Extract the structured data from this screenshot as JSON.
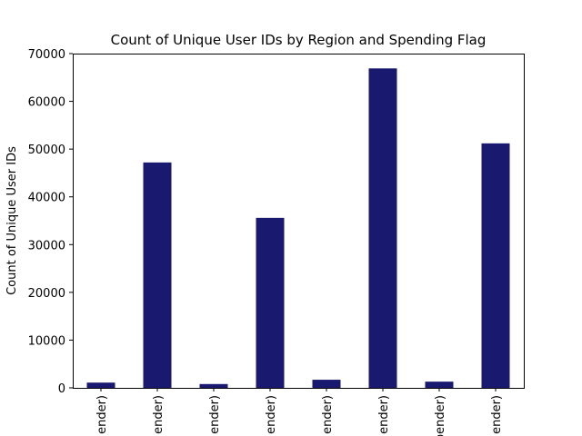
{
  "chart_data": {
    "type": "bar",
    "title": "Count of Unique User IDs by Region and Spending Flag",
    "xlabel": "",
    "ylabel": "Count of Unique User IDs",
    "ylim": [
      0,
      70000
    ],
    "yticks": [
      "0",
      "10000",
      "20000",
      "30000",
      "40000",
      "50000",
      "60000",
      "70000"
    ],
    "categories": [
      "(High spender)",
      "(Low spender)",
      "(High spender)",
      "(Low spender)",
      "(High spender)",
      "(Low spender)",
      "(High spender)",
      "(Low spender)"
    ],
    "category_labels_visible": [
      "ender)",
      "ender)",
      "ender)",
      "ender)",
      "ender)",
      "ender)",
      "pender)",
      "ender)"
    ],
    "values": [
      1100,
      47200,
      800,
      35600,
      1700,
      66900,
      1300,
      51200
    ],
    "bar_color": "#191970",
    "grid": false,
    "legend": false
  }
}
